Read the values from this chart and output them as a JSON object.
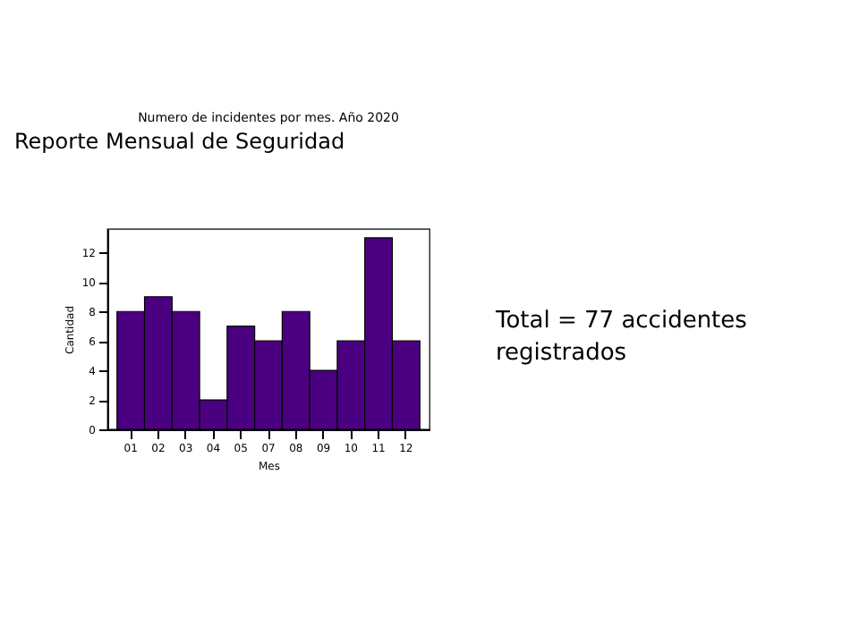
{
  "chart_data": {
    "type": "bar",
    "title": "Numero de incidentes por mes. Año 2020",
    "xlabel": "Mes",
    "ylabel": "Cantidad",
    "categories": [
      "01",
      "02",
      "03",
      "04",
      "05",
      "07",
      "08",
      "09",
      "10",
      "11",
      "12"
    ],
    "values": [
      8,
      9,
      8,
      2,
      7,
      6,
      8,
      4,
      6,
      13,
      6
    ],
    "color": "#4b0082",
    "ylim": [
      0,
      13.6
    ],
    "yticks": [
      0,
      2,
      4,
      6,
      8,
      10,
      12
    ],
    "grid": false,
    "annotations": [
      "Reporte Mensual de Seguridad",
      "Total = 77 accidentes registrados"
    ]
  }
}
